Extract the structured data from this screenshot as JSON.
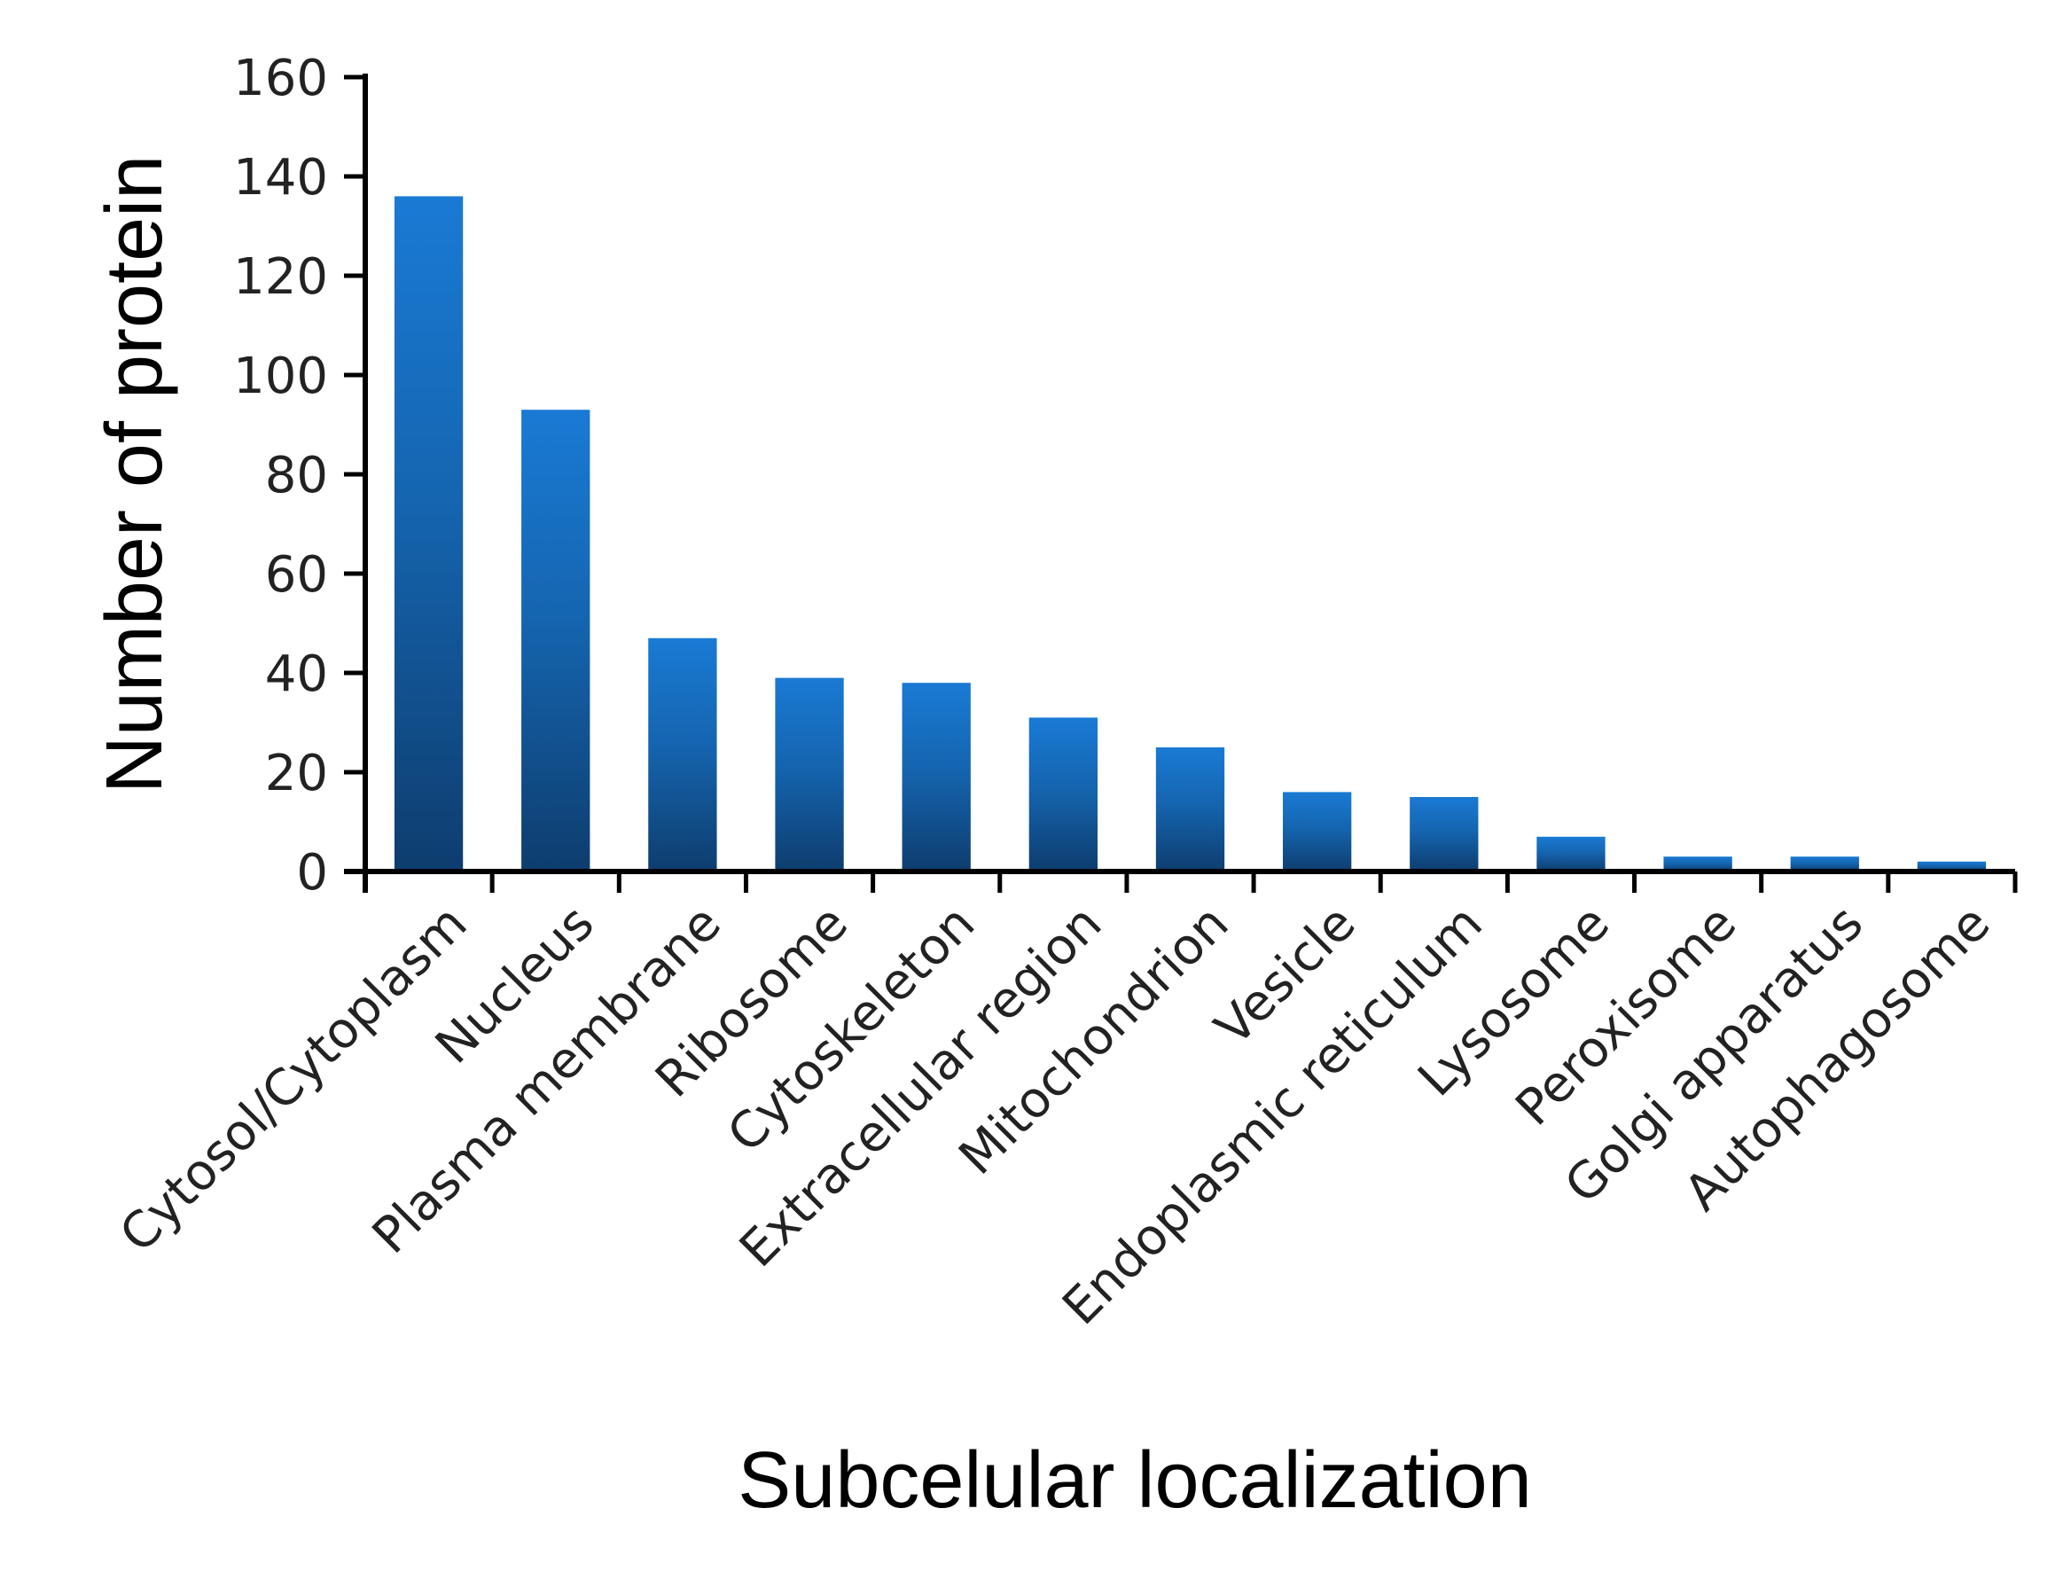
{
  "chart_data": {
    "type": "bar",
    "title": "",
    "xlabel": "Subcelular localization",
    "ylabel": "Number of protein",
    "ylim": [
      0,
      160
    ],
    "yticks": [
      0,
      20,
      40,
      60,
      80,
      100,
      120,
      140,
      160
    ],
    "grid": false,
    "legend": "none",
    "categories": [
      "Cytosol/Cytoplasm",
      "Nucleus",
      "Plasma membrane",
      "Ribosome",
      "Cytoskeleton",
      "Extracellular region",
      "Mitochondrion",
      "Vesicle",
      "Endoplasmic reticulum",
      "Lysosome",
      "Peroxisome",
      "Golgi apparatus",
      "Autophagosome"
    ],
    "values": [
      136,
      93,
      47,
      39,
      38,
      31,
      25,
      16,
      15,
      7,
      3,
      3,
      2
    ],
    "bar_color_top": "#1a7ad4",
    "bar_color_bottom": "#0e3d6e",
    "axis_color": "#000000"
  }
}
